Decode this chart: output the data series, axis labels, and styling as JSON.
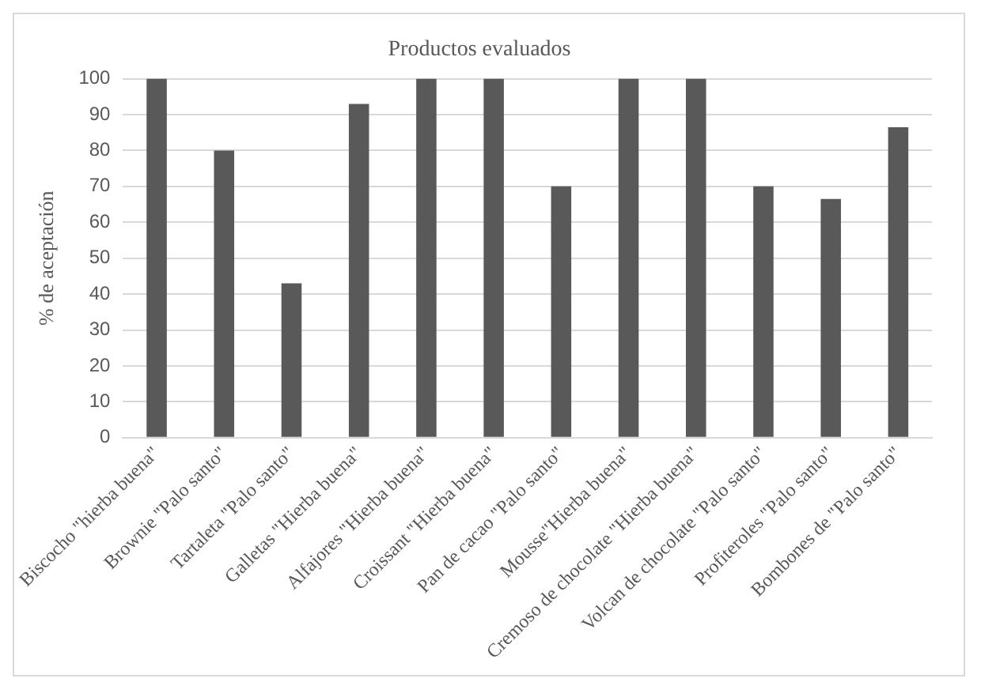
{
  "chart_data": {
    "type": "bar",
    "title": "Productos evaluados",
    "ylabel": "% de aceptación",
    "categories": [
      "Biscocho \"hierba buena\"",
      "Brownie \"Palo santo\"",
      "Tartaleta \"Palo santo\"",
      "Galletas \"Hierba buena\"",
      "Alfajores \"Hierba buena\"",
      "Croissant \"Hierba buena\"",
      "Pan de cacao \"Palo santo\"",
      "Mousse\"Hierba buena\"",
      "Cremoso de chocolate \"Hierba buena\"",
      "Volcan de chocolate \"Palo santo\"",
      "Profiteroles \"Palo santo\"",
      "Bombones de \"Palo santo\""
    ],
    "values": [
      100,
      80,
      43,
      93,
      100,
      100,
      70,
      100,
      100,
      70,
      66.5,
      86.5
    ],
    "color": "#595959",
    "ylim": [
      0,
      100
    ],
    "yticks": [
      0,
      10,
      20,
      30,
      40,
      50,
      60,
      70,
      80,
      90,
      100
    ],
    "grid": "y",
    "legend": false
  }
}
